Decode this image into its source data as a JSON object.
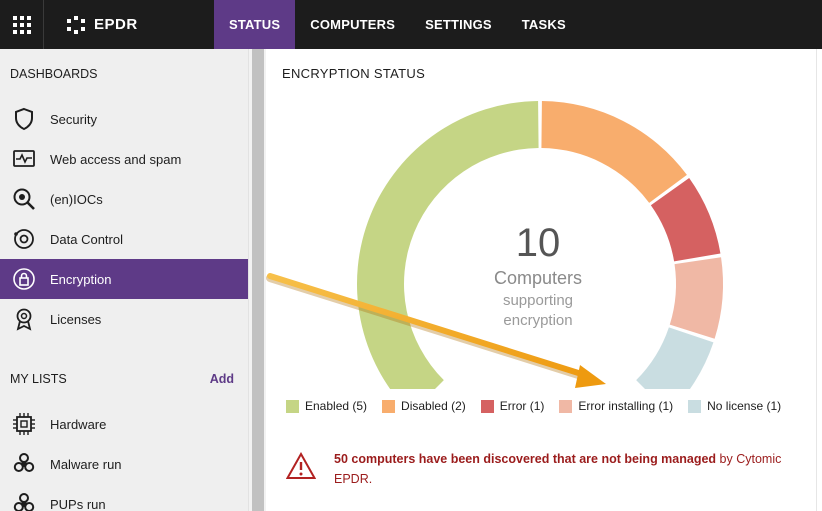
{
  "topbar": {
    "brand": "EPDR",
    "nav": [
      {
        "label": "STATUS",
        "active": true
      },
      {
        "label": "COMPUTERS",
        "active": false
      },
      {
        "label": "SETTINGS",
        "active": false
      },
      {
        "label": "TASKS",
        "active": false
      }
    ]
  },
  "sidebar": {
    "dashboards_title": "DASHBOARDS",
    "items": [
      {
        "label": "Security",
        "icon": "shield-icon"
      },
      {
        "label": "Web access and spam",
        "icon": "activity-icon"
      },
      {
        "label": "(en)IOCs",
        "icon": "ioc-magnifier-icon"
      },
      {
        "label": "Data Control",
        "icon": "data-control-icon"
      },
      {
        "label": "Encryption",
        "icon": "encryption-lock-icon",
        "active": true
      },
      {
        "label": "Licenses",
        "icon": "license-badge-icon"
      }
    ],
    "my_lists_title": "MY LISTS",
    "add_label": "Add",
    "lists": [
      {
        "label": "Hardware",
        "icon": "chip-icon"
      },
      {
        "label": "Malware run",
        "icon": "biohazard-icon"
      },
      {
        "label": "PUPs run",
        "icon": "biohazard-icon"
      }
    ]
  },
  "panel": {
    "title": "ENCRYPTION STATUS",
    "center_value": "10",
    "center_label": "Computers",
    "center_sub_line1": "supporting",
    "center_sub_line2": "encryption"
  },
  "chart_data": {
    "type": "pie",
    "categories": [
      "Enabled",
      "Disabled",
      "Error",
      "Error installing",
      "No license"
    ],
    "values": [
      5,
      2,
      1,
      1,
      1
    ],
    "colors": [
      "#c5d585",
      "#f8ad6d",
      "#d56161",
      "#f0b8a5",
      "#c9dde1"
    ],
    "legend": [
      {
        "label": "Enabled (5)"
      },
      {
        "label": "Disabled (2)"
      },
      {
        "label": "Error (1)"
      },
      {
        "label": "Error installing (1)"
      },
      {
        "label": "No license (1)"
      }
    ],
    "legend_position": "bottom"
  },
  "warning": {
    "strong_text": "50 computers have been discovered that are not being managed",
    "rest_text": " by Cytomic EPDR."
  },
  "colors": {
    "accent": "#5e3a87",
    "topbar": "#1c1c1c",
    "warning_text": "#9b1c1c",
    "arrow": "#f2a81d"
  }
}
